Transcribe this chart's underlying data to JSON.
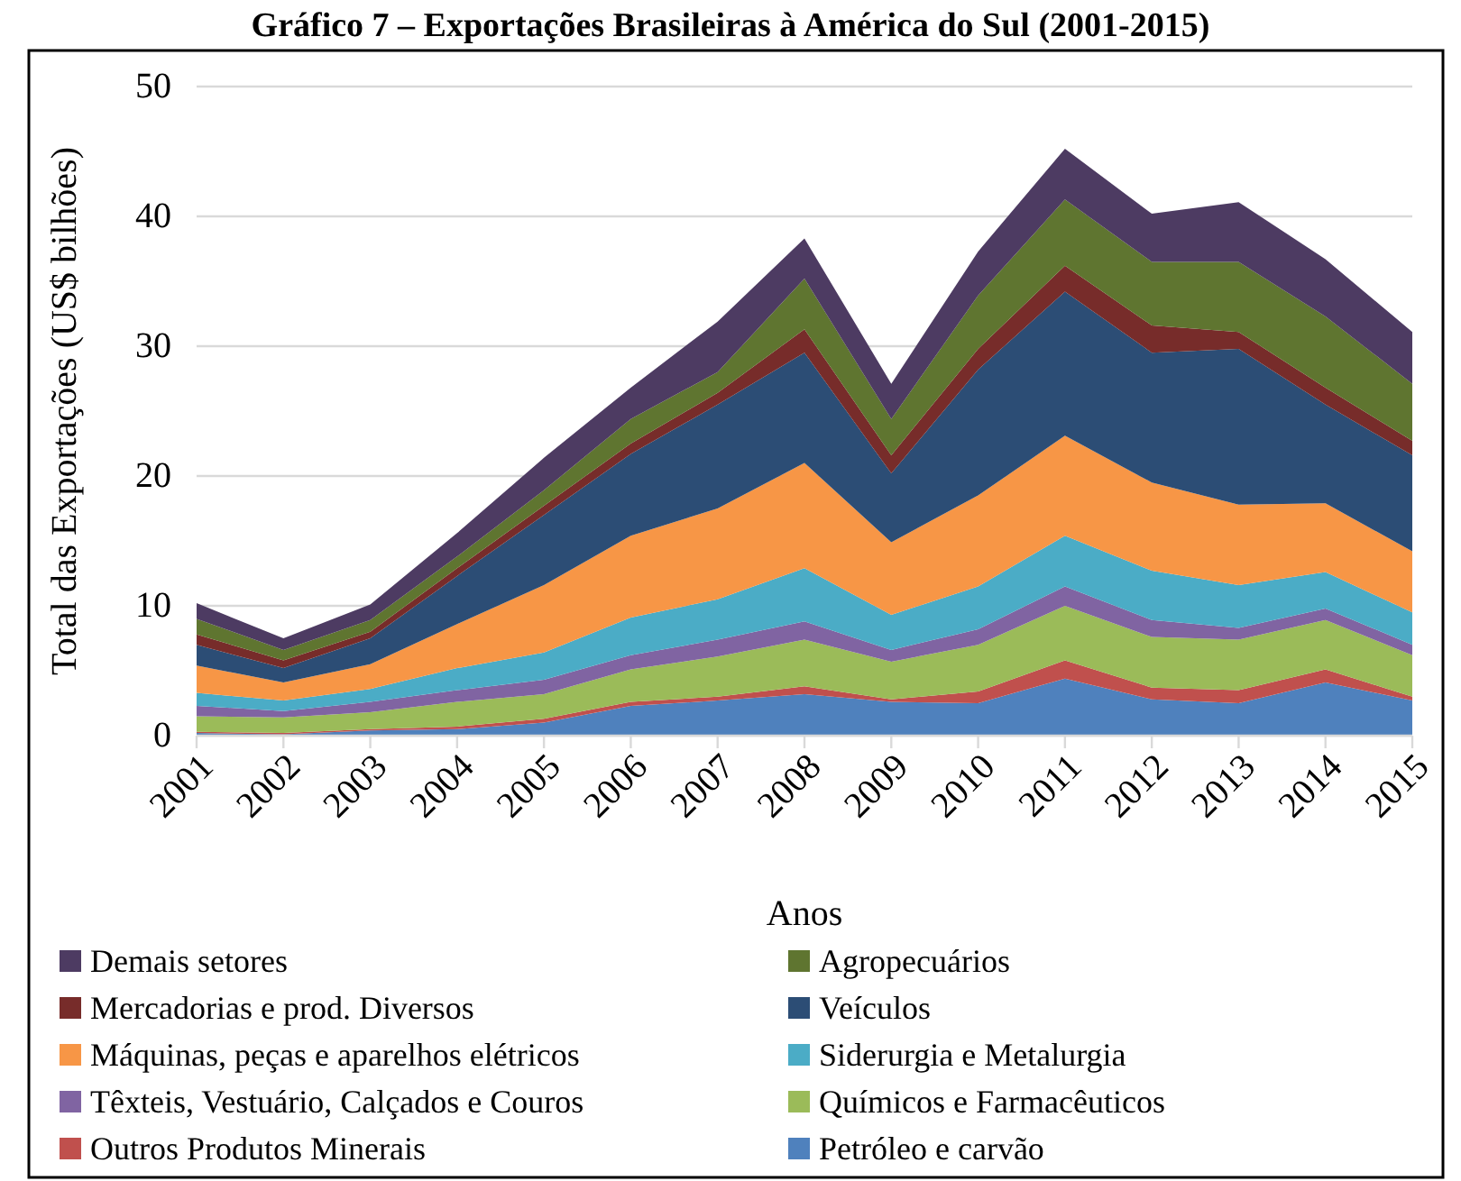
{
  "chart_data": {
    "type": "area",
    "stacked": true,
    "title": "Gráfico 7 – Exportações Brasileiras à América do Sul (2001-2015)",
    "xlabel": "Anos",
    "ylabel": "Total das Exportações (US$ bilhões)",
    "x": [
      2001,
      2002,
      2003,
      2004,
      2005,
      2006,
      2007,
      2008,
      2009,
      2010,
      2011,
      2012,
      2013,
      2014,
      2015
    ],
    "xlim": [
      2001,
      2015
    ],
    "xticks": [
      2001,
      2002,
      2003,
      2004,
      2005,
      2006,
      2007,
      2008,
      2009,
      2010,
      2011,
      2012,
      2013,
      2014,
      2015
    ],
    "ylim": [
      0,
      50
    ],
    "yticks": [
      0,
      10,
      20,
      30,
      40,
      50
    ],
    "grid": "y",
    "legend": "bottom",
    "series": [
      {
        "name": "Petróleo e carvão",
        "color": "#4f81bd",
        "values": [
          0.2,
          0.1,
          0.4,
          0.5,
          1.0,
          2.3,
          2.7,
          3.2,
          2.6,
          2.5,
          4.4,
          2.8,
          2.5,
          4.1,
          2.7
        ]
      },
      {
        "name": "Outros Produtos Minerais",
        "color": "#c0504d",
        "values": [
          0.1,
          0.1,
          0.1,
          0.2,
          0.3,
          0.3,
          0.3,
          0.6,
          0.2,
          0.9,
          1.4,
          0.9,
          1.0,
          1.0,
          0.3
        ]
      },
      {
        "name": "Químicos e Farmacêuticos",
        "color": "#9bbb59",
        "values": [
          1.2,
          1.2,
          1.3,
          1.9,
          1.9,
          2.5,
          3.1,
          3.6,
          2.9,
          3.6,
          4.2,
          3.9,
          3.9,
          3.8,
          3.2
        ]
      },
      {
        "name": "Têxteis, Vestuário, Calçados e Couros",
        "color": "#8064a2",
        "values": [
          0.8,
          0.5,
          0.8,
          0.9,
          1.1,
          1.1,
          1.3,
          1.4,
          0.9,
          1.2,
          1.5,
          1.3,
          0.9,
          0.9,
          0.8
        ]
      },
      {
        "name": "Siderurgia e Metalurgia",
        "color": "#4bacc6",
        "values": [
          1.0,
          0.8,
          1.0,
          1.7,
          2.1,
          2.9,
          3.1,
          4.1,
          2.7,
          3.3,
          3.9,
          3.8,
          3.3,
          2.8,
          2.5
        ]
      },
      {
        "name": "Máquinas, peças e aparelhos elétricos",
        "color": "#f79646",
        "values": [
          2.1,
          1.4,
          1.9,
          3.4,
          5.2,
          6.3,
          7.0,
          8.1,
          5.6,
          7.0,
          7.7,
          6.8,
          6.2,
          5.3,
          4.7
        ]
      },
      {
        "name": "Veículos",
        "color": "#2c4d75",
        "values": [
          1.6,
          1.1,
          2.0,
          3.7,
          5.4,
          6.3,
          8.0,
          8.5,
          5.3,
          9.7,
          11.1,
          10.0,
          12.0,
          7.6,
          7.4
        ]
      },
      {
        "name": "Mercadorias e prod. Diversos",
        "color": "#772c2a",
        "values": [
          0.8,
          0.6,
          0.5,
          0.6,
          0.7,
          0.8,
          0.9,
          1.8,
          1.4,
          1.6,
          2.0,
          2.1,
          1.3,
          1.3,
          1.1
        ]
      },
      {
        "name": "Agropecuários",
        "color": "#5f7530",
        "values": [
          1.2,
          0.8,
          0.9,
          0.9,
          1.2,
          1.9,
          1.6,
          3.9,
          2.8,
          4.1,
          5.1,
          4.9,
          5.4,
          5.5,
          4.4
        ]
      },
      {
        "name": "Demais setores",
        "color": "#4d3b62",
        "values": [
          1.2,
          0.9,
          1.2,
          1.8,
          2.5,
          2.4,
          3.9,
          3.1,
          2.7,
          3.4,
          3.9,
          3.7,
          4.6,
          4.4,
          4.0
        ]
      }
    ]
  }
}
